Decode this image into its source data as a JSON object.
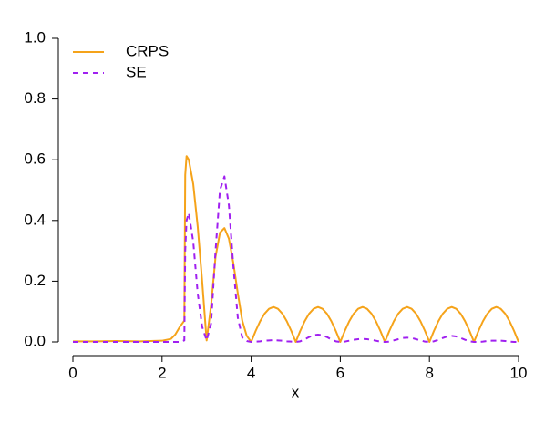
{
  "chart_data": {
    "type": "line",
    "x": [
      0,
      0.5,
      1,
      1.5,
      2,
      2.2,
      2.3,
      2.4,
      2.5,
      2.52,
      2.55,
      2.6,
      2.7,
      2.8,
      2.9,
      3,
      3.1,
      3.2,
      3.3,
      3.4,
      3.5,
      3.6,
      3.7,
      3.8,
      3.9,
      4,
      4.1,
      4.2,
      4.3,
      4.4,
      4.5,
      4.6,
      4.7,
      4.8,
      4.9,
      5,
      5.1,
      5.2,
      5.3,
      5.4,
      5.5,
      5.6,
      5.7,
      5.8,
      5.9,
      6,
      6.1,
      6.2,
      6.3,
      6.4,
      6.5,
      6.6,
      6.7,
      6.8,
      6.9,
      7,
      7.1,
      7.2,
      7.3,
      7.4,
      7.5,
      7.6,
      7.7,
      7.8,
      7.9,
      8,
      8.1,
      8.2,
      8.3,
      8.4,
      8.5,
      8.6,
      8.7,
      8.8,
      8.9,
      9,
      9.1,
      9.2,
      9.3,
      9.4,
      9.5,
      9.6,
      9.7,
      9.8,
      9.9,
      10
    ],
    "x_label": "x",
    "series": [
      {
        "name": "CRPS",
        "color": "#f5a31a",
        "dash": false,
        "values": [
          0.002,
          0.002,
          0.003,
          0.002,
          0.004,
          0.01,
          0.025,
          0.05,
          0.07,
          0.55,
          0.612,
          0.6,
          0.52,
          0.38,
          0.2,
          0.005,
          0.12,
          0.28,
          0.36,
          0.375,
          0.34,
          0.26,
          0.16,
          0.07,
          0.02,
          0,
          0.036,
          0.068,
          0.093,
          0.109,
          0.115,
          0.109,
          0.093,
          0.068,
          0.036,
          0,
          0.036,
          0.068,
          0.093,
          0.109,
          0.115,
          0.109,
          0.093,
          0.068,
          0.036,
          0,
          0.036,
          0.068,
          0.093,
          0.109,
          0.115,
          0.109,
          0.093,
          0.068,
          0.036,
          0,
          0.036,
          0.068,
          0.093,
          0.109,
          0.115,
          0.109,
          0.093,
          0.068,
          0.036,
          0,
          0.036,
          0.068,
          0.093,
          0.109,
          0.115,
          0.109,
          0.093,
          0.068,
          0.036,
          0,
          0.036,
          0.068,
          0.093,
          0.109,
          0.115,
          0.109,
          0.093,
          0.068,
          0.036,
          0
        ]
      },
      {
        "name": "SE",
        "color": "#a020f0",
        "dash": true,
        "values": [
          0,
          0,
          0,
          0,
          0,
          0,
          0,
          0,
          0.005,
          0.3,
          0.4,
          0.425,
          0.33,
          0.16,
          0.05,
          0.005,
          0.06,
          0.3,
          0.5,
          0.545,
          0.45,
          0.25,
          0.08,
          0.015,
          0.003,
          0,
          0.001,
          0.002,
          0.004,
          0.005,
          0.006,
          0.005,
          0.004,
          0.002,
          0.001,
          0,
          0.002,
          0.008,
          0.016,
          0.022,
          0.024,
          0.022,
          0.016,
          0.008,
          0.002,
          0,
          0.001,
          0.004,
          0.007,
          0.009,
          0.01,
          0.009,
          0.007,
          0.004,
          0.001,
          0,
          0.001,
          0.005,
          0.009,
          0.013,
          0.014,
          0.013,
          0.009,
          0.005,
          0.001,
          0,
          0.002,
          0.007,
          0.013,
          0.018,
          0.02,
          0.018,
          0.013,
          0.007,
          0.002,
          0,
          0,
          0.001,
          0.003,
          0.004,
          0.004,
          0.004,
          0.003,
          0.001,
          0,
          0
        ]
      }
    ],
    "xlim": [
      0,
      10
    ],
    "xticks": [
      0,
      2,
      4,
      6,
      8,
      10
    ],
    "ylim": [
      0,
      1
    ],
    "yticks": [
      {
        "value": 0,
        "label": "0.0"
      },
      0.2,
      0.4,
      0.6,
      0.8,
      {
        "value": 1,
        "label": "1.0"
      }
    ],
    "legend": "top-left",
    "grid": false
  }
}
